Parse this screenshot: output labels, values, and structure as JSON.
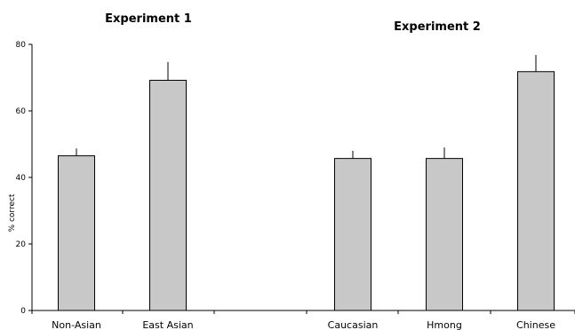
{
  "chart_data": {
    "type": "bar",
    "panels": [
      {
        "title": "Experiment 1",
        "categories": [
          "Non-Asian",
          "East Asian"
        ]
      },
      {
        "title": "Experiment 2",
        "categories": [
          "Caucasian",
          "Hmong",
          "Chinese"
        ]
      }
    ],
    "categories": [
      "Non-Asian",
      "East Asian",
      "Caucasian",
      "Hmong",
      "Chinese"
    ],
    "values": [
      46.5,
      69.2,
      45.7,
      45.7,
      71.8
    ],
    "error_plus": [
      2.2,
      5.5,
      2.3,
      3.3,
      5.0
    ],
    "ylabel": "% correct",
    "ylim": [
      0,
      80
    ],
    "yticks": [
      0,
      20,
      40,
      60,
      80
    ],
    "grid": false,
    "colors": {
      "bar_fill": "#c8c8c8",
      "bar_stroke": "#000000"
    }
  }
}
